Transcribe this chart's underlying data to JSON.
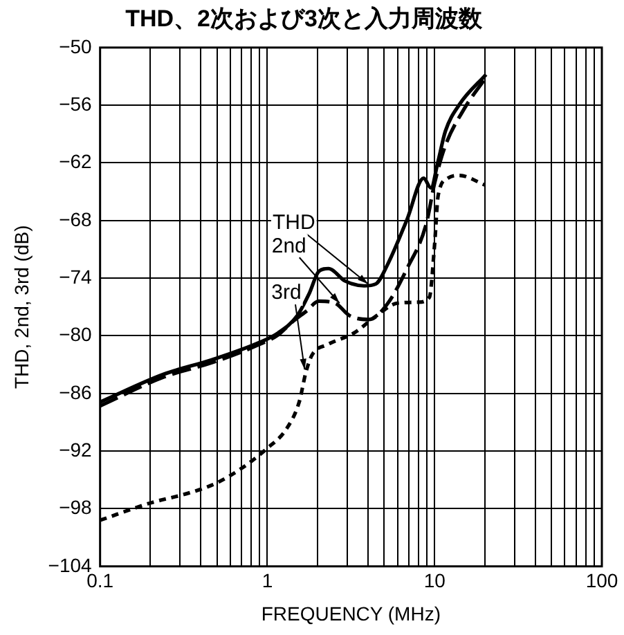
{
  "chart_data": {
    "type": "line",
    "title": "THD、2次および3次と入力周波数",
    "xlabel": "FREQUENCY (MHz)",
    "ylabel": "THD, 2nd, 3rd (dB)",
    "log": "x",
    "grid": true,
    "legend": false,
    "marker": "none",
    "xlim": [
      0.1,
      100
    ],
    "xticks": [
      0.1,
      {
        "value": 0.2,
        "label": null
      },
      {
        "value": 0.3,
        "label": null
      },
      {
        "value": 0.4,
        "label": null
      },
      {
        "value": 0.5,
        "label": null
      },
      {
        "value": 0.6,
        "label": null
      },
      {
        "value": 0.7,
        "label": null
      },
      {
        "value": 0.8,
        "label": null
      },
      {
        "value": 0.9,
        "label": null
      },
      1,
      {
        "value": 2,
        "label": null
      },
      {
        "value": 3,
        "label": null
      },
      {
        "value": 4,
        "label": null
      },
      {
        "value": 5,
        "label": null
      },
      {
        "value": 6,
        "label": null
      },
      {
        "value": 7,
        "label": null
      },
      {
        "value": 8,
        "label": null
      },
      {
        "value": 9,
        "label": null
      },
      10,
      {
        "value": 20,
        "label": null
      },
      {
        "value": 30,
        "label": null
      },
      {
        "value": 40,
        "label": null
      },
      {
        "value": 50,
        "label": null
      },
      {
        "value": 60,
        "label": null
      },
      {
        "value": 70,
        "label": null
      },
      {
        "value": 80,
        "label": null
      },
      {
        "value": 90,
        "label": null
      },
      100
    ],
    "ylim": [
      -104,
      -50
    ],
    "yticks": [
      {
        "value": -104,
        "label": "−104"
      },
      {
        "value": -98,
        "label": "−98"
      },
      {
        "value": -92,
        "label": "−92"
      },
      {
        "value": -86,
        "label": "−86"
      },
      {
        "value": -80,
        "label": "−80"
      },
      {
        "value": -74,
        "label": "−74"
      },
      {
        "value": -68,
        "label": "−68"
      },
      {
        "value": -62,
        "label": "−62"
      },
      {
        "value": -56,
        "label": "−56"
      },
      {
        "value": -50,
        "label": "−50"
      }
    ],
    "series": [
      {
        "color": "#000000",
        "line_style": "solid",
        "x": [
          0.1,
          0.24,
          0.465,
          0.895,
          1.16,
          1.51,
          1.78,
          2.03,
          2.32,
          2.92,
          3.79,
          4.45,
          5.26,
          6.84,
          8.6,
          9.5,
          10.5,
          11.6,
          14.1,
          20.3
        ],
        "values": [
          -86.9,
          -84.0,
          -82.5,
          -80.7,
          -79.7,
          -77.9,
          -75.6,
          -73.3,
          -73.0,
          -74.3,
          -74.8,
          -74.6,
          -72.5,
          -67.9,
          -63.6,
          -64.6,
          -61.8,
          -58.7,
          -55.9,
          -52.8
        ]
      },
      {
        "color": "#000000",
        "line_style": "dashed",
        "x": [
          0.1,
          0.24,
          0.465,
          0.895,
          1.16,
          1.4,
          1.72,
          2.03,
          2.54,
          3.1,
          4.04,
          5.26,
          6.84,
          8.9,
          10,
          11.6,
          15,
          20.3
        ],
        "values": [
          -87.3,
          -84.3,
          -82.8,
          -80.9,
          -79.9,
          -78.6,
          -77.4,
          -76.4,
          -76.6,
          -77.9,
          -78.3,
          -76.6,
          -73.0,
          -68.4,
          -64.1,
          -60.2,
          -56.4,
          -53.1
        ]
      },
      {
        "color": "#000000",
        "line_style": "dotted",
        "x": [
          0.1,
          0.2,
          0.35,
          0.5,
          0.7,
          1.0,
          1.3,
          1.55,
          1.7,
          1.85,
          2.3,
          3.3,
          4.5,
          6,
          8,
          9.3,
          10,
          10.5,
          12,
          14,
          20
        ],
        "values": [
          -99.2,
          -97.4,
          -96.3,
          -95.3,
          -93.8,
          -91.7,
          -89.7,
          -86.9,
          -83.8,
          -82.0,
          -80.9,
          -79.7,
          -77.9,
          -76.6,
          -76.5,
          -76.0,
          -70.5,
          -65.4,
          -63.6,
          -63.3,
          -64.3
        ]
      }
    ],
    "annotations": [
      {
        "text": "THD",
        "x": 4.0,
        "y": -74.6
      },
      {
        "text": "2nd",
        "x": 2.7,
        "y": -76.6
      },
      {
        "text": "3rd",
        "x": 1.67,
        "y": -83.5
      }
    ]
  }
}
